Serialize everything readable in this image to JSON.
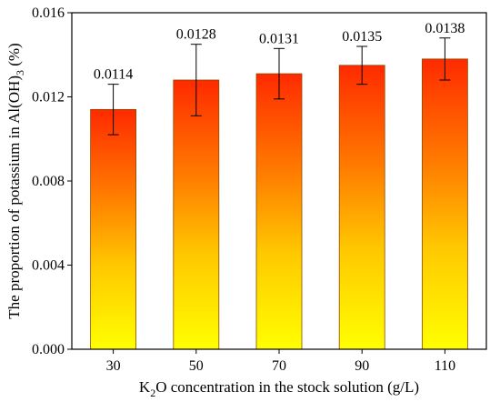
{
  "chart_data": {
    "type": "bar",
    "title": "",
    "xlabel": "K2O concentration in the stock solution (g/L)",
    "xlabel_parts": {
      "main": "K",
      "sub": "2",
      "rest": "O concentration in the stock solution (g/L)"
    },
    "ylabel": "The proportion of potassium in Al(OH)3 (%)",
    "ylabel_parts": {
      "main": "The proportion of potassium in Al(OH)",
      "sub": "3",
      "rest": " (%)"
    },
    "categories": [
      "30",
      "50",
      "70",
      "90",
      "110"
    ],
    "values": [
      0.0114,
      0.0128,
      0.0131,
      0.0135,
      0.0138
    ],
    "value_labels": [
      "0.0114",
      "0.0128",
      "0.0131",
      "0.0135",
      "0.0138"
    ],
    "error_low": [
      0.0102,
      0.0111,
      0.0119,
      0.0126,
      0.0128
    ],
    "error_high": [
      0.0126,
      0.0145,
      0.0143,
      0.0144,
      0.0148
    ],
    "ylim": [
      0,
      0.016
    ],
    "yticks": [
      0.0,
      0.004,
      0.008,
      0.012,
      0.016
    ],
    "ytick_labels": [
      "0.000",
      "0.004",
      "0.008",
      "0.012",
      "0.016"
    ],
    "grid": false,
    "legend": "none",
    "colors": {
      "bar_top": "#ff2a00",
      "bar_bottom": "#ffff00",
      "bar_edge": "#8a4a00",
      "axis": "#000000"
    }
  }
}
